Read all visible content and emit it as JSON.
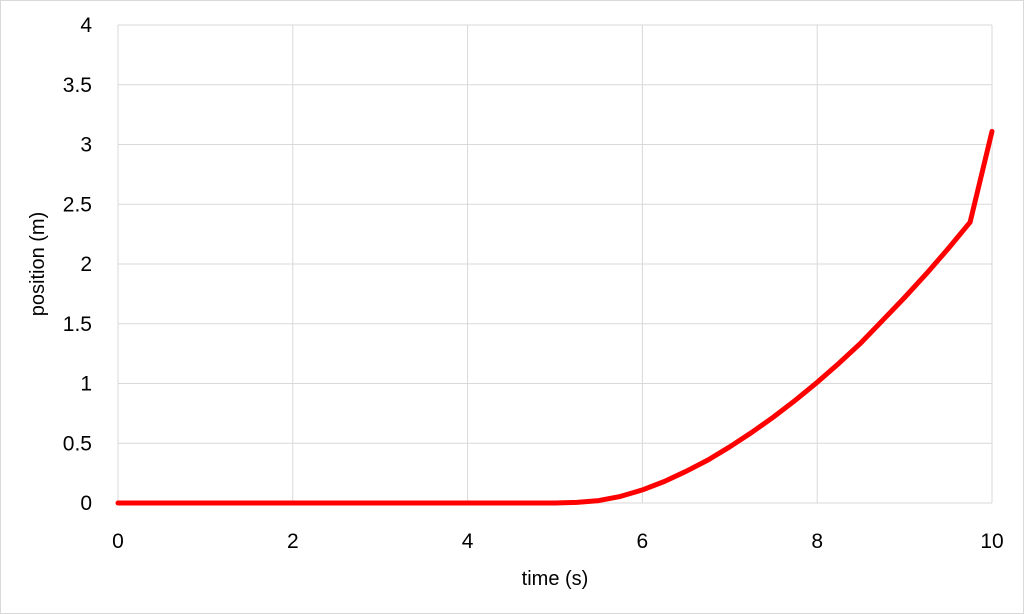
{
  "chart_data": {
    "type": "line",
    "title": "",
    "xlabel": "time (s)",
    "ylabel": "position (m)",
    "xlim": [
      0,
      10
    ],
    "ylim": [
      0,
      4
    ],
    "xticks": [
      "0",
      "2",
      "4",
      "6",
      "8",
      "10"
    ],
    "yticks": [
      "0",
      "0.5",
      "1",
      "1.5",
      "2",
      "2.5",
      "3",
      "3.5",
      "4"
    ],
    "grid": true,
    "legend": "none",
    "series": [
      {
        "color": "#ff0000",
        "x": [
          0,
          1,
          2,
          3,
          4,
          5,
          5.25,
          5.5,
          5.75,
          6,
          6.25,
          6.5,
          6.75,
          7,
          7.25,
          7.5,
          7.75,
          8,
          8.25,
          8.5,
          8.75,
          9,
          9.25,
          9.5,
          9.75,
          10
        ],
        "y": [
          0,
          0,
          0,
          0,
          0,
          0,
          0.005,
          0.02,
          0.055,
          0.11,
          0.18,
          0.265,
          0.36,
          0.47,
          0.59,
          0.72,
          0.86,
          1.01,
          1.17,
          1.34,
          1.53,
          1.72,
          1.92,
          2.13,
          2.35,
          3.11
        ]
      }
    ]
  }
}
